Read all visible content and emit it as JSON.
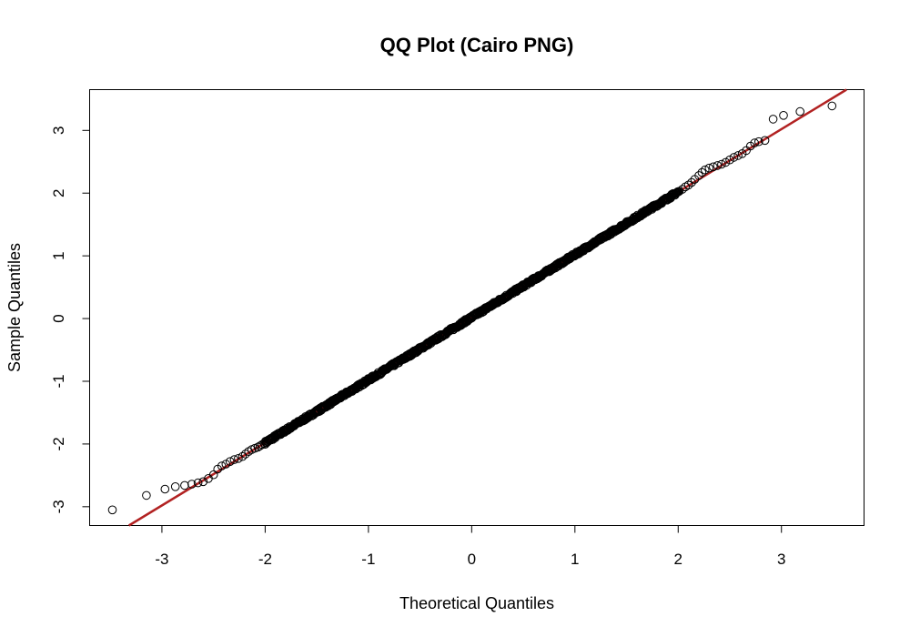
{
  "chart_data": {
    "type": "scatter",
    "title": "QQ Plot (Cairo PNG)",
    "xlabel": "Theoretical Quantiles",
    "ylabel": "Sample Quantiles",
    "xlim": [
      -3.7,
      3.8
    ],
    "ylim": [
      -3.3,
      3.65
    ],
    "x_ticks": [
      -3,
      -2,
      -1,
      0,
      1,
      2,
      3
    ],
    "y_ticks": [
      -3,
      -2,
      -1,
      0,
      1,
      2,
      3
    ],
    "x_tick_labels": [
      "-3",
      "-2",
      "-1",
      "0",
      "1",
      "2",
      "3"
    ],
    "y_tick_labels": [
      "-3",
      "-2",
      "-1",
      "0",
      "1",
      "2",
      "3"
    ],
    "reference_line": {
      "intercept": 0.02,
      "slope": 1.0,
      "color": "#b22222"
    },
    "point_color": "#000000",
    "grid": false,
    "series": [
      {
        "points": [
          [
            -3.48,
            -3.05
          ],
          [
            -3.15,
            -2.82
          ],
          [
            -2.97,
            -2.72
          ],
          [
            -2.87,
            -2.68
          ],
          [
            -2.78,
            -2.66
          ],
          [
            -2.71,
            -2.64
          ],
          [
            -2.65,
            -2.62
          ],
          [
            -2.6,
            -2.6
          ],
          [
            -2.55,
            -2.55
          ],
          [
            -2.5,
            -2.49
          ],
          [
            -2.46,
            -2.4
          ],
          [
            -2.42,
            -2.35
          ],
          [
            -2.38,
            -2.32
          ],
          [
            -2.34,
            -2.28
          ],
          [
            -2.3,
            -2.25
          ],
          [
            -2.26,
            -2.23
          ],
          [
            -2.22,
            -2.2
          ],
          [
            -2.19,
            -2.16
          ],
          [
            -2.16,
            -2.12
          ],
          [
            -2.13,
            -2.09
          ],
          [
            -2.1,
            -2.07
          ],
          [
            -2.07,
            -2.05
          ],
          [
            -2.05,
            -2.03
          ],
          [
            -2.03,
            -2.01
          ],
          [
            -2.01,
            -1.99
          ],
          [
            2.01,
            2.03
          ],
          [
            2.04,
            2.06
          ],
          [
            2.07,
            2.1
          ],
          [
            2.1,
            2.13
          ],
          [
            2.13,
            2.17
          ],
          [
            2.16,
            2.22
          ],
          [
            2.2,
            2.28
          ],
          [
            2.23,
            2.33
          ],
          [
            2.26,
            2.37
          ],
          [
            2.3,
            2.4
          ],
          [
            2.34,
            2.42
          ],
          [
            2.38,
            2.44
          ],
          [
            2.42,
            2.46
          ],
          [
            2.46,
            2.49
          ],
          [
            2.5,
            2.53
          ],
          [
            2.54,
            2.57
          ],
          [
            2.58,
            2.6
          ],
          [
            2.62,
            2.63
          ],
          [
            2.66,
            2.68
          ],
          [
            2.7,
            2.75
          ],
          [
            2.74,
            2.8
          ],
          [
            2.78,
            2.82
          ],
          [
            2.84,
            2.84
          ],
          [
            2.92,
            3.18
          ],
          [
            3.02,
            3.24
          ],
          [
            3.18,
            3.3
          ],
          [
            3.49,
            3.39
          ]
        ]
      }
    ]
  }
}
